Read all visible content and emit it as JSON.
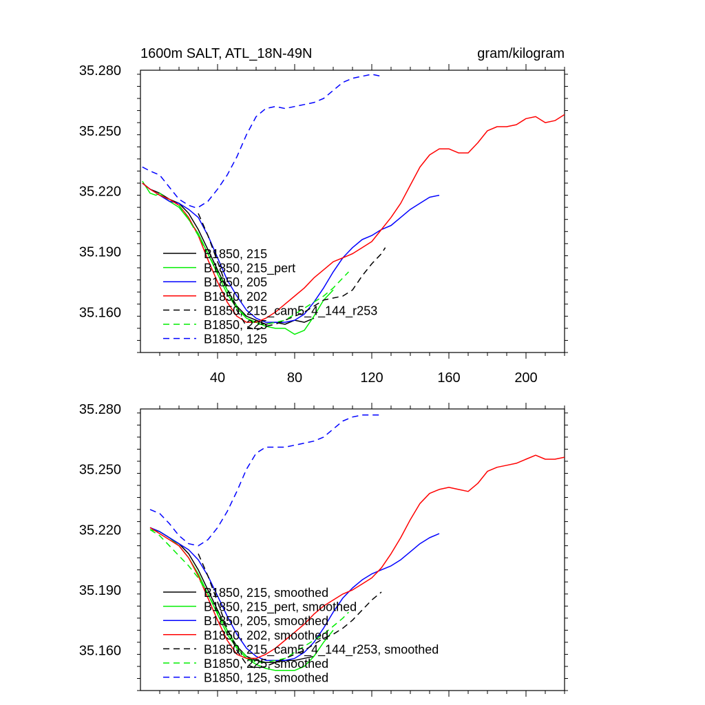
{
  "chart_data": [
    {
      "type": "line",
      "title": "1600m SALT, ATL_18N-49N",
      "units": "gram/kilogram",
      "xlim": [
        0,
        220
      ],
      "ylim": [
        35.14,
        35.28
      ],
      "xticks": [
        40,
        80,
        120,
        160,
        200
      ],
      "xtick_labels": [
        "40",
        "80",
        "120",
        "160",
        "200"
      ],
      "yticks": [
        35.16,
        35.19,
        35.22,
        35.25,
        35.28
      ],
      "ytick_labels": [
        "35.160",
        "35.190",
        "35.220",
        "35.250",
        "35.280"
      ],
      "legend_position": "lower-left",
      "series": [
        {
          "name": "B1850, 215",
          "color": "#000000",
          "dash": "solid",
          "x": [
            1,
            5,
            10,
            15,
            20,
            25,
            30,
            35,
            40,
            45,
            50,
            55,
            60,
            65,
            70,
            75,
            80,
            85,
            90
          ],
          "y": [
            35.224,
            35.221,
            35.219,
            35.216,
            35.214,
            35.209,
            35.201,
            35.191,
            35.181,
            35.171,
            35.163,
            35.158,
            35.156,
            35.154,
            35.155,
            35.154,
            35.156,
            35.155,
            35.157
          ]
        },
        {
          "name": "B1850, 215_pert",
          "color": "#00ee00",
          "dash": "solid",
          "x": [
            1,
            5,
            8,
            10,
            15,
            20,
            25,
            30,
            35,
            40,
            45,
            50,
            55,
            60,
            65,
            70,
            75,
            80,
            85,
            90,
            95,
            100
          ],
          "y": [
            35.225,
            35.219,
            35.218,
            35.219,
            35.215,
            35.212,
            35.206,
            35.199,
            35.189,
            35.179,
            35.169,
            35.162,
            35.157,
            35.155,
            35.153,
            35.152,
            35.152,
            35.149,
            35.151,
            35.158,
            35.166,
            35.171
          ]
        },
        {
          "name": "B1850, 205",
          "color": "#0000ff",
          "dash": "solid",
          "x": [
            1,
            5,
            10,
            15,
            20,
            25,
            30,
            35,
            40,
            45,
            50,
            55,
            60,
            65,
            70,
            75,
            80,
            85,
            90,
            95,
            100,
            105,
            110,
            115,
            120,
            125,
            130,
            135,
            140,
            145,
            150,
            155
          ],
          "y": [
            35.224,
            35.221,
            35.218,
            35.215,
            35.214,
            35.211,
            35.207,
            35.198,
            35.187,
            35.176,
            35.168,
            35.161,
            35.157,
            35.155,
            35.155,
            35.155,
            35.156,
            35.159,
            35.165,
            35.172,
            35.18,
            35.187,
            35.192,
            35.196,
            35.198,
            35.201,
            35.203,
            35.207,
            35.211,
            35.214,
            35.217,
            35.218
          ]
        },
        {
          "name": "B1850, 202",
          "color": "#ff0000",
          "dash": "solid",
          "x": [
            1,
            5,
            10,
            15,
            20,
            25,
            30,
            35,
            40,
            45,
            50,
            55,
            60,
            65,
            70,
            75,
            80,
            85,
            90,
            95,
            100,
            105,
            110,
            115,
            120,
            125,
            130,
            135,
            140,
            145,
            150,
            155,
            160,
            165,
            170,
            175,
            180,
            185,
            190,
            195,
            200,
            205,
            210,
            215,
            220
          ],
          "y": [
            35.224,
            35.221,
            35.218,
            35.216,
            35.213,
            35.207,
            35.198,
            35.186,
            35.175,
            35.165,
            35.158,
            35.155,
            35.155,
            35.157,
            35.16,
            35.164,
            35.168,
            35.172,
            35.177,
            35.181,
            35.185,
            35.187,
            35.189,
            35.192,
            35.195,
            35.201,
            35.207,
            35.214,
            35.223,
            35.232,
            35.238,
            35.241,
            35.241,
            35.239,
            35.239,
            35.244,
            35.25,
            35.252,
            35.252,
            35.253,
            35.256,
            35.257,
            35.254,
            35.255,
            35.258
          ]
        },
        {
          "name": "B1850, 215_cam5_4_144_r253",
          "color": "#000000",
          "dash": "9,6",
          "x": [
            30,
            35,
            40,
            45,
            50,
            55,
            60,
            65,
            70,
            75,
            80,
            85,
            90,
            95,
            100,
            105,
            110,
            115,
            120,
            125,
            127
          ],
          "y": [
            35.209,
            35.198,
            35.185,
            35.172,
            35.161,
            35.153,
            35.151,
            35.153,
            35.154,
            35.156,
            35.158,
            35.16,
            35.163,
            35.166,
            35.167,
            35.168,
            35.171,
            35.178,
            35.184,
            35.189,
            35.192
          ]
        },
        {
          "name": "B1850, 225",
          "color": "#00ee00",
          "dash": "9,6",
          "x": [
            20,
            25,
            30,
            35,
            40,
            45,
            50,
            55,
            60,
            65,
            70,
            75,
            80,
            85,
            90,
            95,
            100,
            105,
            108
          ],
          "y": [
            35.213,
            35.206,
            35.198,
            35.189,
            35.18,
            35.171,
            35.163,
            35.157,
            35.154,
            35.154,
            35.155,
            35.156,
            35.159,
            35.162,
            35.165,
            35.168,
            35.172,
            35.177,
            35.18
          ]
        },
        {
          "name": "B1850, 125",
          "color": "#0000ff",
          "dash": "9,6",
          "x": [
            1,
            5,
            10,
            15,
            20,
            25,
            28,
            30,
            35,
            40,
            45,
            50,
            55,
            60,
            65,
            70,
            75,
            80,
            85,
            90,
            95,
            100,
            105,
            110,
            115,
            120,
            125
          ],
          "y": [
            35.232,
            35.23,
            35.228,
            35.222,
            35.216,
            35.213,
            35.212,
            35.212,
            35.215,
            35.221,
            35.228,
            35.237,
            35.248,
            35.257,
            35.261,
            35.262,
            35.261,
            35.262,
            35.263,
            35.264,
            35.266,
            35.27,
            35.274,
            35.276,
            35.277,
            35.278,
            35.277
          ]
        }
      ]
    },
    {
      "type": "line",
      "title": "",
      "units": "",
      "xlim": [
        0,
        220
      ],
      "ylim": [
        35.14,
        35.28
      ],
      "xticks": [
        40,
        80,
        120,
        160,
        200
      ],
      "yticks": [
        35.16,
        35.19,
        35.22,
        35.25,
        35.28
      ],
      "ytick_labels": [
        "35.160",
        "35.190",
        "35.220",
        "35.250",
        "35.280"
      ],
      "legend_position": "lower-left",
      "series": [
        {
          "name": "B1850, 215, smoothed",
          "color": "#000000",
          "dash": "solid",
          "x": [
            5,
            10,
            15,
            20,
            25,
            30,
            35,
            40,
            45,
            50,
            55,
            60,
            65,
            70,
            75,
            80,
            85,
            90
          ],
          "y": [
            35.221,
            35.219,
            35.216,
            35.213,
            35.208,
            35.2,
            35.19,
            35.18,
            35.17,
            35.162,
            35.157,
            35.155,
            35.154,
            35.154,
            35.155,
            35.155,
            35.156,
            35.157
          ]
        },
        {
          "name": "B1850, 215_pert, smoothed",
          "color": "#00ee00",
          "dash": "solid",
          "x": [
            5,
            10,
            15,
            20,
            25,
            30,
            35,
            40,
            45,
            50,
            55,
            60,
            65,
            70,
            75,
            80,
            85,
            90,
            95,
            100
          ],
          "y": [
            35.22,
            35.219,
            35.216,
            35.212,
            35.206,
            35.198,
            35.188,
            35.178,
            35.168,
            35.161,
            35.156,
            35.153,
            35.151,
            35.15,
            35.15,
            35.15,
            35.152,
            35.157,
            35.164,
            35.17
          ]
        },
        {
          "name": "B1850, 205, smoothed",
          "color": "#0000ff",
          "dash": "solid",
          "x": [
            5,
            10,
            15,
            20,
            25,
            30,
            35,
            40,
            45,
            50,
            55,
            60,
            65,
            70,
            75,
            80,
            85,
            90,
            95,
            100,
            105,
            110,
            115,
            120,
            125,
            130,
            135,
            140,
            145,
            150,
            155
          ],
          "y": [
            35.221,
            35.219,
            35.216,
            35.213,
            35.21,
            35.205,
            35.197,
            35.187,
            35.177,
            35.168,
            35.161,
            35.157,
            35.155,
            35.155,
            35.155,
            35.156,
            35.159,
            35.164,
            35.171,
            35.179,
            35.186,
            35.191,
            35.195,
            35.198,
            35.2,
            35.202,
            35.205,
            35.209,
            35.213,
            35.216,
            35.218
          ]
        },
        {
          "name": "B1850, 202, smoothed",
          "color": "#ff0000",
          "dash": "solid",
          "x": [
            5,
            10,
            15,
            20,
            25,
            30,
            35,
            40,
            45,
            50,
            55,
            60,
            65,
            70,
            75,
            80,
            85,
            90,
            95,
            100,
            105,
            110,
            115,
            120,
            125,
            130,
            135,
            140,
            145,
            150,
            155,
            160,
            165,
            170,
            175,
            180,
            185,
            190,
            195,
            200,
            205,
            210,
            215,
            220
          ],
          "y": [
            35.221,
            35.218,
            35.215,
            35.212,
            35.206,
            35.197,
            35.186,
            35.175,
            35.165,
            35.158,
            35.156,
            35.156,
            35.158,
            35.161,
            35.165,
            35.169,
            35.173,
            35.178,
            35.182,
            35.185,
            35.188,
            35.19,
            35.193,
            35.196,
            35.201,
            35.208,
            35.216,
            35.225,
            35.233,
            35.238,
            35.24,
            35.241,
            35.24,
            35.239,
            35.243,
            35.249,
            35.251,
            35.252,
            35.253,
            35.255,
            35.257,
            35.255,
            35.255,
            35.256
          ]
        },
        {
          "name": "B1850, 215_cam5_4_144_r253, smoothed",
          "color": "#000000",
          "dash": "9,6",
          "x": [
            30,
            35,
            40,
            45,
            50,
            55,
            60,
            65,
            70,
            75,
            80,
            85,
            90,
            95,
            100,
            105,
            110,
            115,
            120,
            125
          ],
          "y": [
            35.208,
            35.197,
            35.184,
            35.171,
            35.16,
            35.153,
            35.151,
            35.152,
            35.154,
            35.156,
            35.158,
            35.16,
            35.163,
            35.166,
            35.168,
            35.171,
            35.175,
            35.18,
            35.185,
            35.189
          ]
        },
        {
          "name": "B1850, 225, smoothed",
          "color": "#00ee00",
          "dash": "9,6",
          "x": [
            5,
            10,
            15,
            20,
            25,
            30,
            35,
            40,
            45,
            50,
            55,
            60,
            65,
            70,
            75,
            80,
            85,
            90,
            95,
            100,
            105,
            108
          ],
          "y": [
            35.22,
            35.217,
            35.212,
            35.207,
            35.202,
            35.196,
            35.188,
            35.179,
            35.17,
            35.162,
            35.157,
            35.154,
            35.154,
            35.155,
            35.156,
            35.159,
            35.162,
            35.165,
            35.168,
            35.172,
            35.176,
            35.179
          ]
        },
        {
          "name": "B1850, 125, smoothed",
          "color": "#0000ff",
          "dash": "9,6",
          "x": [
            5,
            10,
            15,
            20,
            25,
            30,
            35,
            40,
            45,
            50,
            55,
            60,
            65,
            70,
            75,
            80,
            85,
            90,
            95,
            100,
            105,
            110,
            115,
            120,
            125
          ],
          "y": [
            35.23,
            35.228,
            35.223,
            35.217,
            35.213,
            35.212,
            35.215,
            35.221,
            35.229,
            35.239,
            35.25,
            35.258,
            35.261,
            35.261,
            35.261,
            35.262,
            35.263,
            35.264,
            35.266,
            35.27,
            35.274,
            35.276,
            35.277,
            35.277,
            35.277
          ]
        }
      ]
    }
  ]
}
